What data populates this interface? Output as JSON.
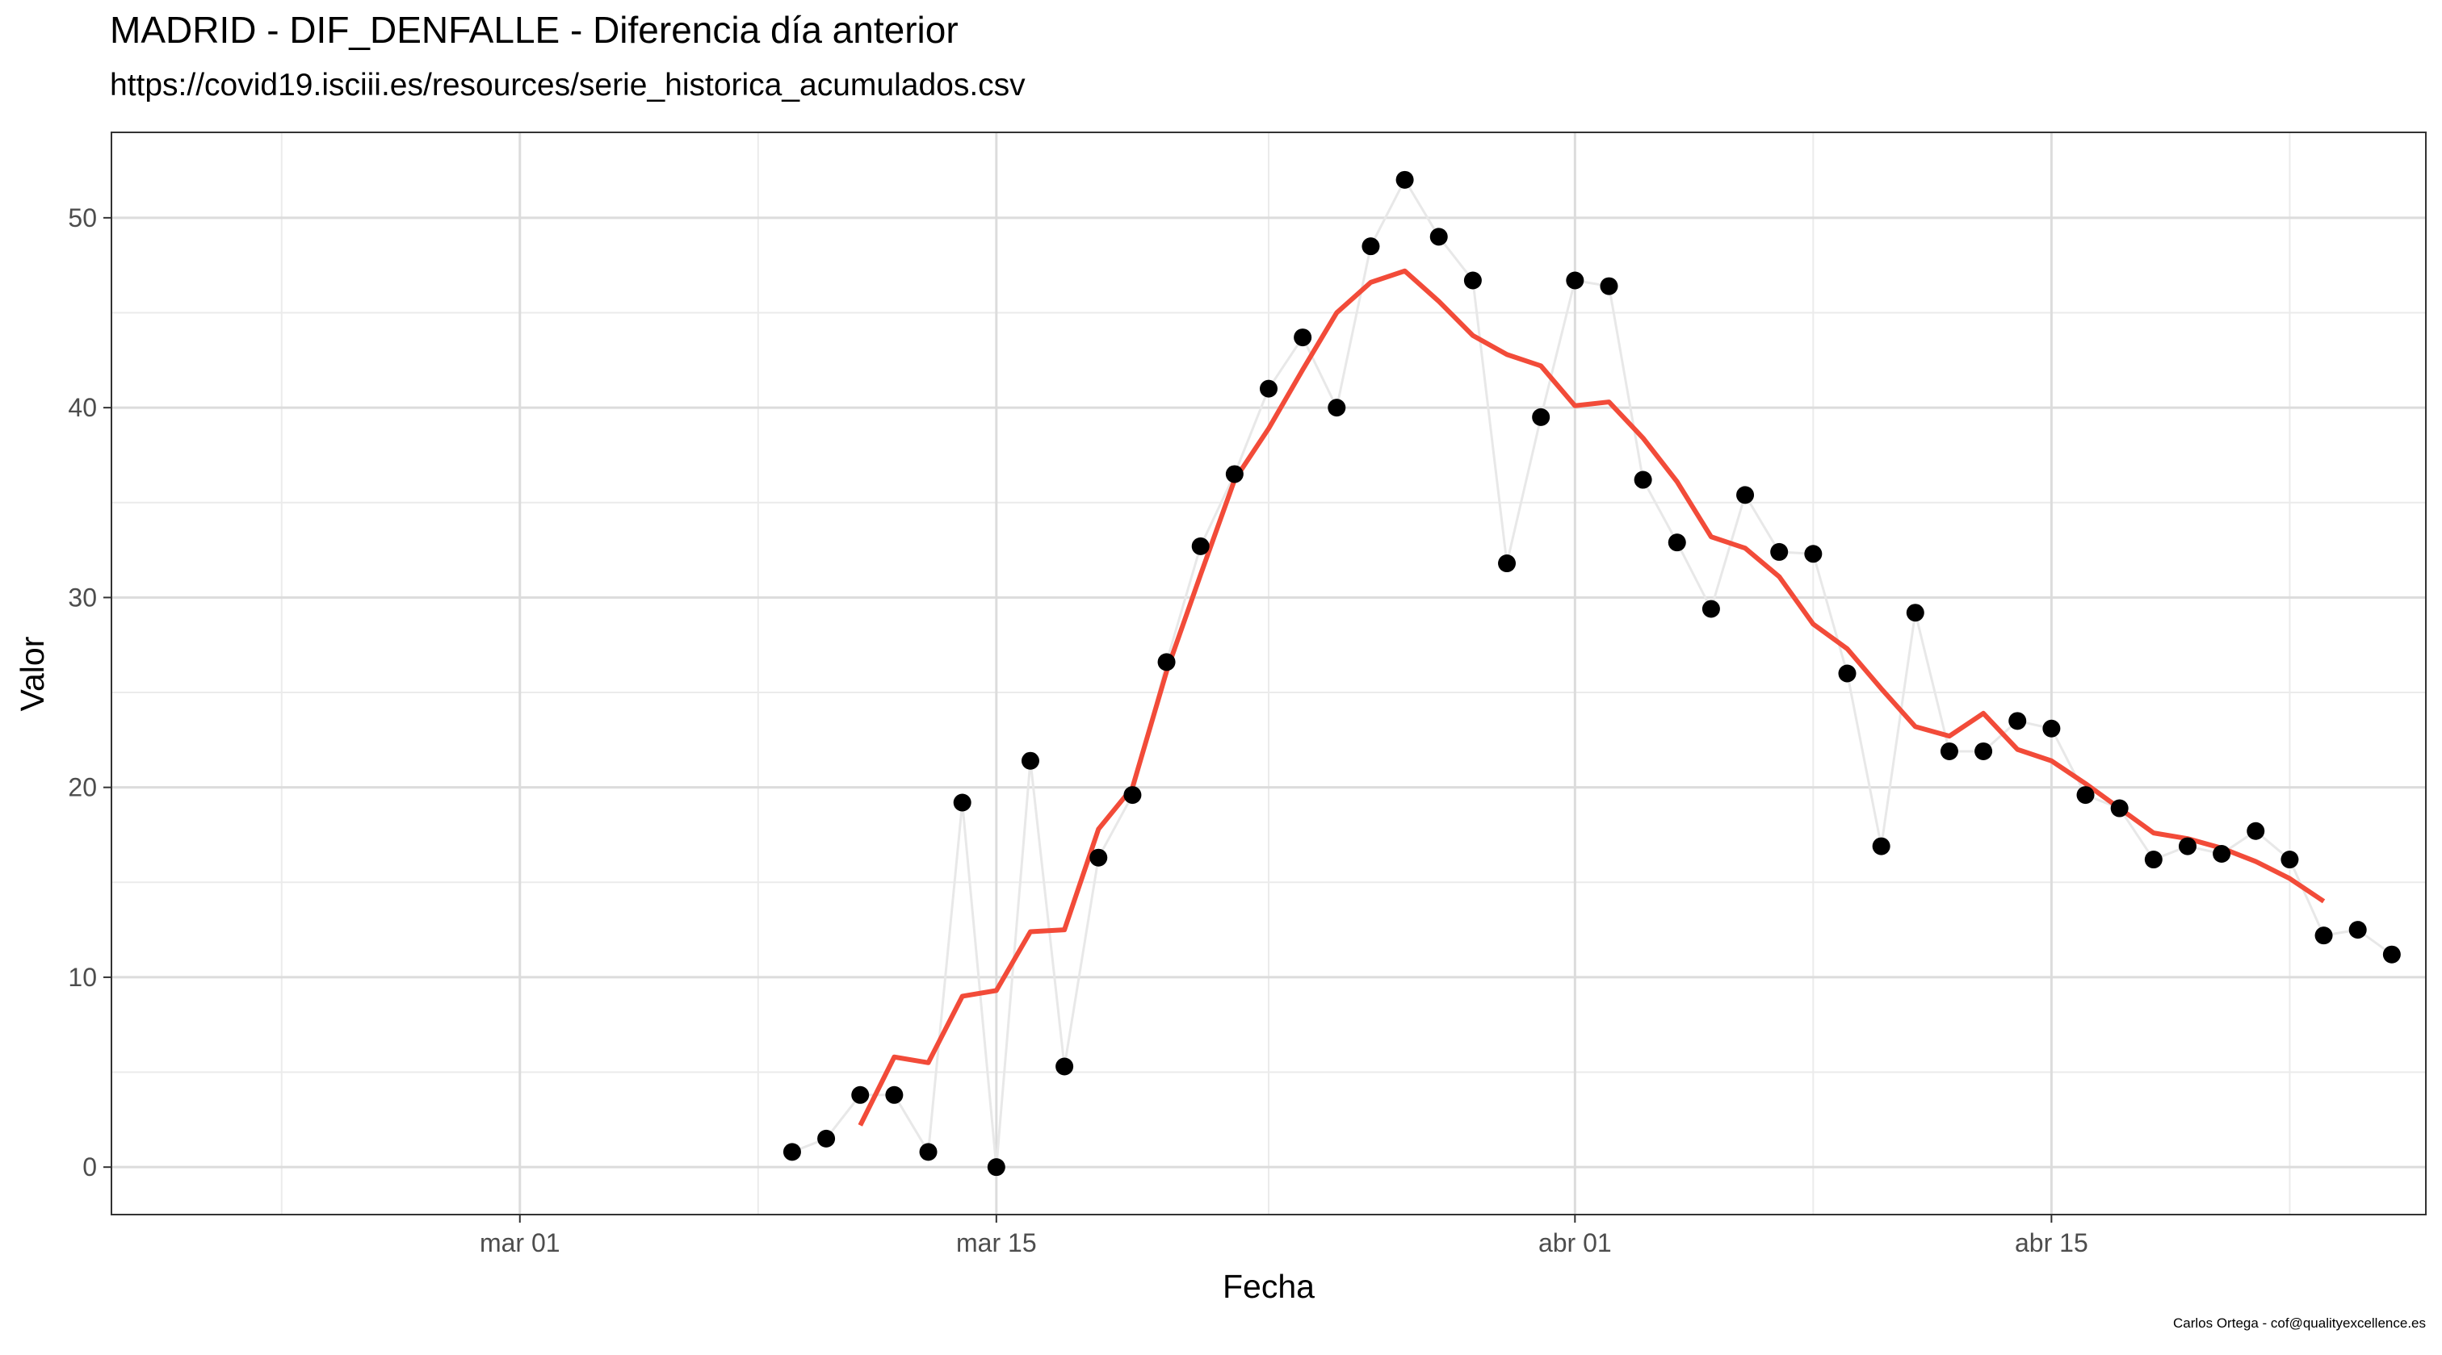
{
  "chart_data": {
    "type": "line",
    "title": "MADRID - DIF_DENFALLE - Diferencia día anterior",
    "subtitle": "https://covid19.isciii.es/resources/serie_historica_acumulados.csv",
    "xlabel": "Fecha",
    "ylabel": "Valor",
    "caption": "Carlos Ortega - cof@qualityexcellence.es",
    "x_ticks": [
      "mar 01",
      "mar 15",
      "abr 01",
      "abr 15"
    ],
    "y_ticks": [
      "0",
      "10",
      "20",
      "30",
      "40",
      "50"
    ],
    "xlim": [
      "2020-02-18",
      "2020-04-26"
    ],
    "ylim": [
      -2.5,
      54.5
    ],
    "grid": true,
    "series": [
      {
        "kind": "points+line",
        "color": "#000000",
        "line_color": "#e8e8e8",
        "x": [
          "2020-03-09",
          "2020-03-10",
          "2020-03-11",
          "2020-03-12",
          "2020-03-13",
          "2020-03-14",
          "2020-03-15",
          "2020-03-16",
          "2020-03-17",
          "2020-03-18",
          "2020-03-19",
          "2020-03-20",
          "2020-03-21",
          "2020-03-22",
          "2020-03-23",
          "2020-03-24",
          "2020-03-25",
          "2020-03-26",
          "2020-03-27",
          "2020-03-28",
          "2020-03-29",
          "2020-03-30",
          "2020-03-31",
          "2020-04-01",
          "2020-04-02",
          "2020-04-03",
          "2020-04-04",
          "2020-04-05",
          "2020-04-06",
          "2020-04-07",
          "2020-04-08",
          "2020-04-09",
          "2020-04-10",
          "2020-04-11",
          "2020-04-12",
          "2020-04-13",
          "2020-04-14",
          "2020-04-15",
          "2020-04-16",
          "2020-04-17",
          "2020-04-18",
          "2020-04-19",
          "2020-04-20",
          "2020-04-21",
          "2020-04-22",
          "2020-04-23",
          "2020-04-24",
          "2020-04-25"
        ],
        "values": [
          0.8,
          1.5,
          3.8,
          3.8,
          0.8,
          19.2,
          0.0,
          21.4,
          5.3,
          16.3,
          19.6,
          26.6,
          32.7,
          36.5,
          41.0,
          43.7,
          40.0,
          48.5,
          52.0,
          49.0,
          46.7,
          31.8,
          39.5,
          46.7,
          46.4,
          36.2,
          32.9,
          29.4,
          35.4,
          32.4,
          32.3,
          26.0,
          16.9,
          29.2,
          21.9,
          21.9,
          23.5,
          23.1,
          19.6,
          18.9,
          16.2,
          16.9,
          16.5,
          17.7,
          16.2,
          12.2,
          12.5,
          11.2
        ]
      },
      {
        "kind": "line",
        "color": "#f24b39",
        "x": [
          "2020-03-11",
          "2020-03-12",
          "2020-03-13",
          "2020-03-14",
          "2020-03-15",
          "2020-03-16",
          "2020-03-17",
          "2020-03-18",
          "2020-03-19",
          "2020-03-20",
          "2020-03-21",
          "2020-03-22",
          "2020-03-23",
          "2020-03-24",
          "2020-03-25",
          "2020-03-26",
          "2020-03-27",
          "2020-03-28",
          "2020-03-29",
          "2020-03-30",
          "2020-03-31",
          "2020-04-01",
          "2020-04-02",
          "2020-04-03",
          "2020-04-04",
          "2020-04-05",
          "2020-04-06",
          "2020-04-07",
          "2020-04-08",
          "2020-04-09",
          "2020-04-10",
          "2020-04-11",
          "2020-04-12",
          "2020-04-13",
          "2020-04-14",
          "2020-04-15",
          "2020-04-16",
          "2020-04-17",
          "2020-04-18",
          "2020-04-19",
          "2020-04-20",
          "2020-04-21",
          "2020-04-22",
          "2020-04-23"
        ],
        "values": [
          2.2,
          5.8,
          5.5,
          9.0,
          9.3,
          12.4,
          12.5,
          17.8,
          20.0,
          26.1,
          31.2,
          36.2,
          38.9,
          42.0,
          45.0,
          46.6,
          47.2,
          45.6,
          43.8,
          42.8,
          42.2,
          40.1,
          40.3,
          38.4,
          36.1,
          33.2,
          32.6,
          31.1,
          28.6,
          27.3,
          25.2,
          23.2,
          22.7,
          23.9,
          22.0,
          21.4,
          20.2,
          18.9,
          17.6,
          17.3,
          16.8,
          16.1,
          15.2,
          14.0
        ]
      }
    ]
  }
}
